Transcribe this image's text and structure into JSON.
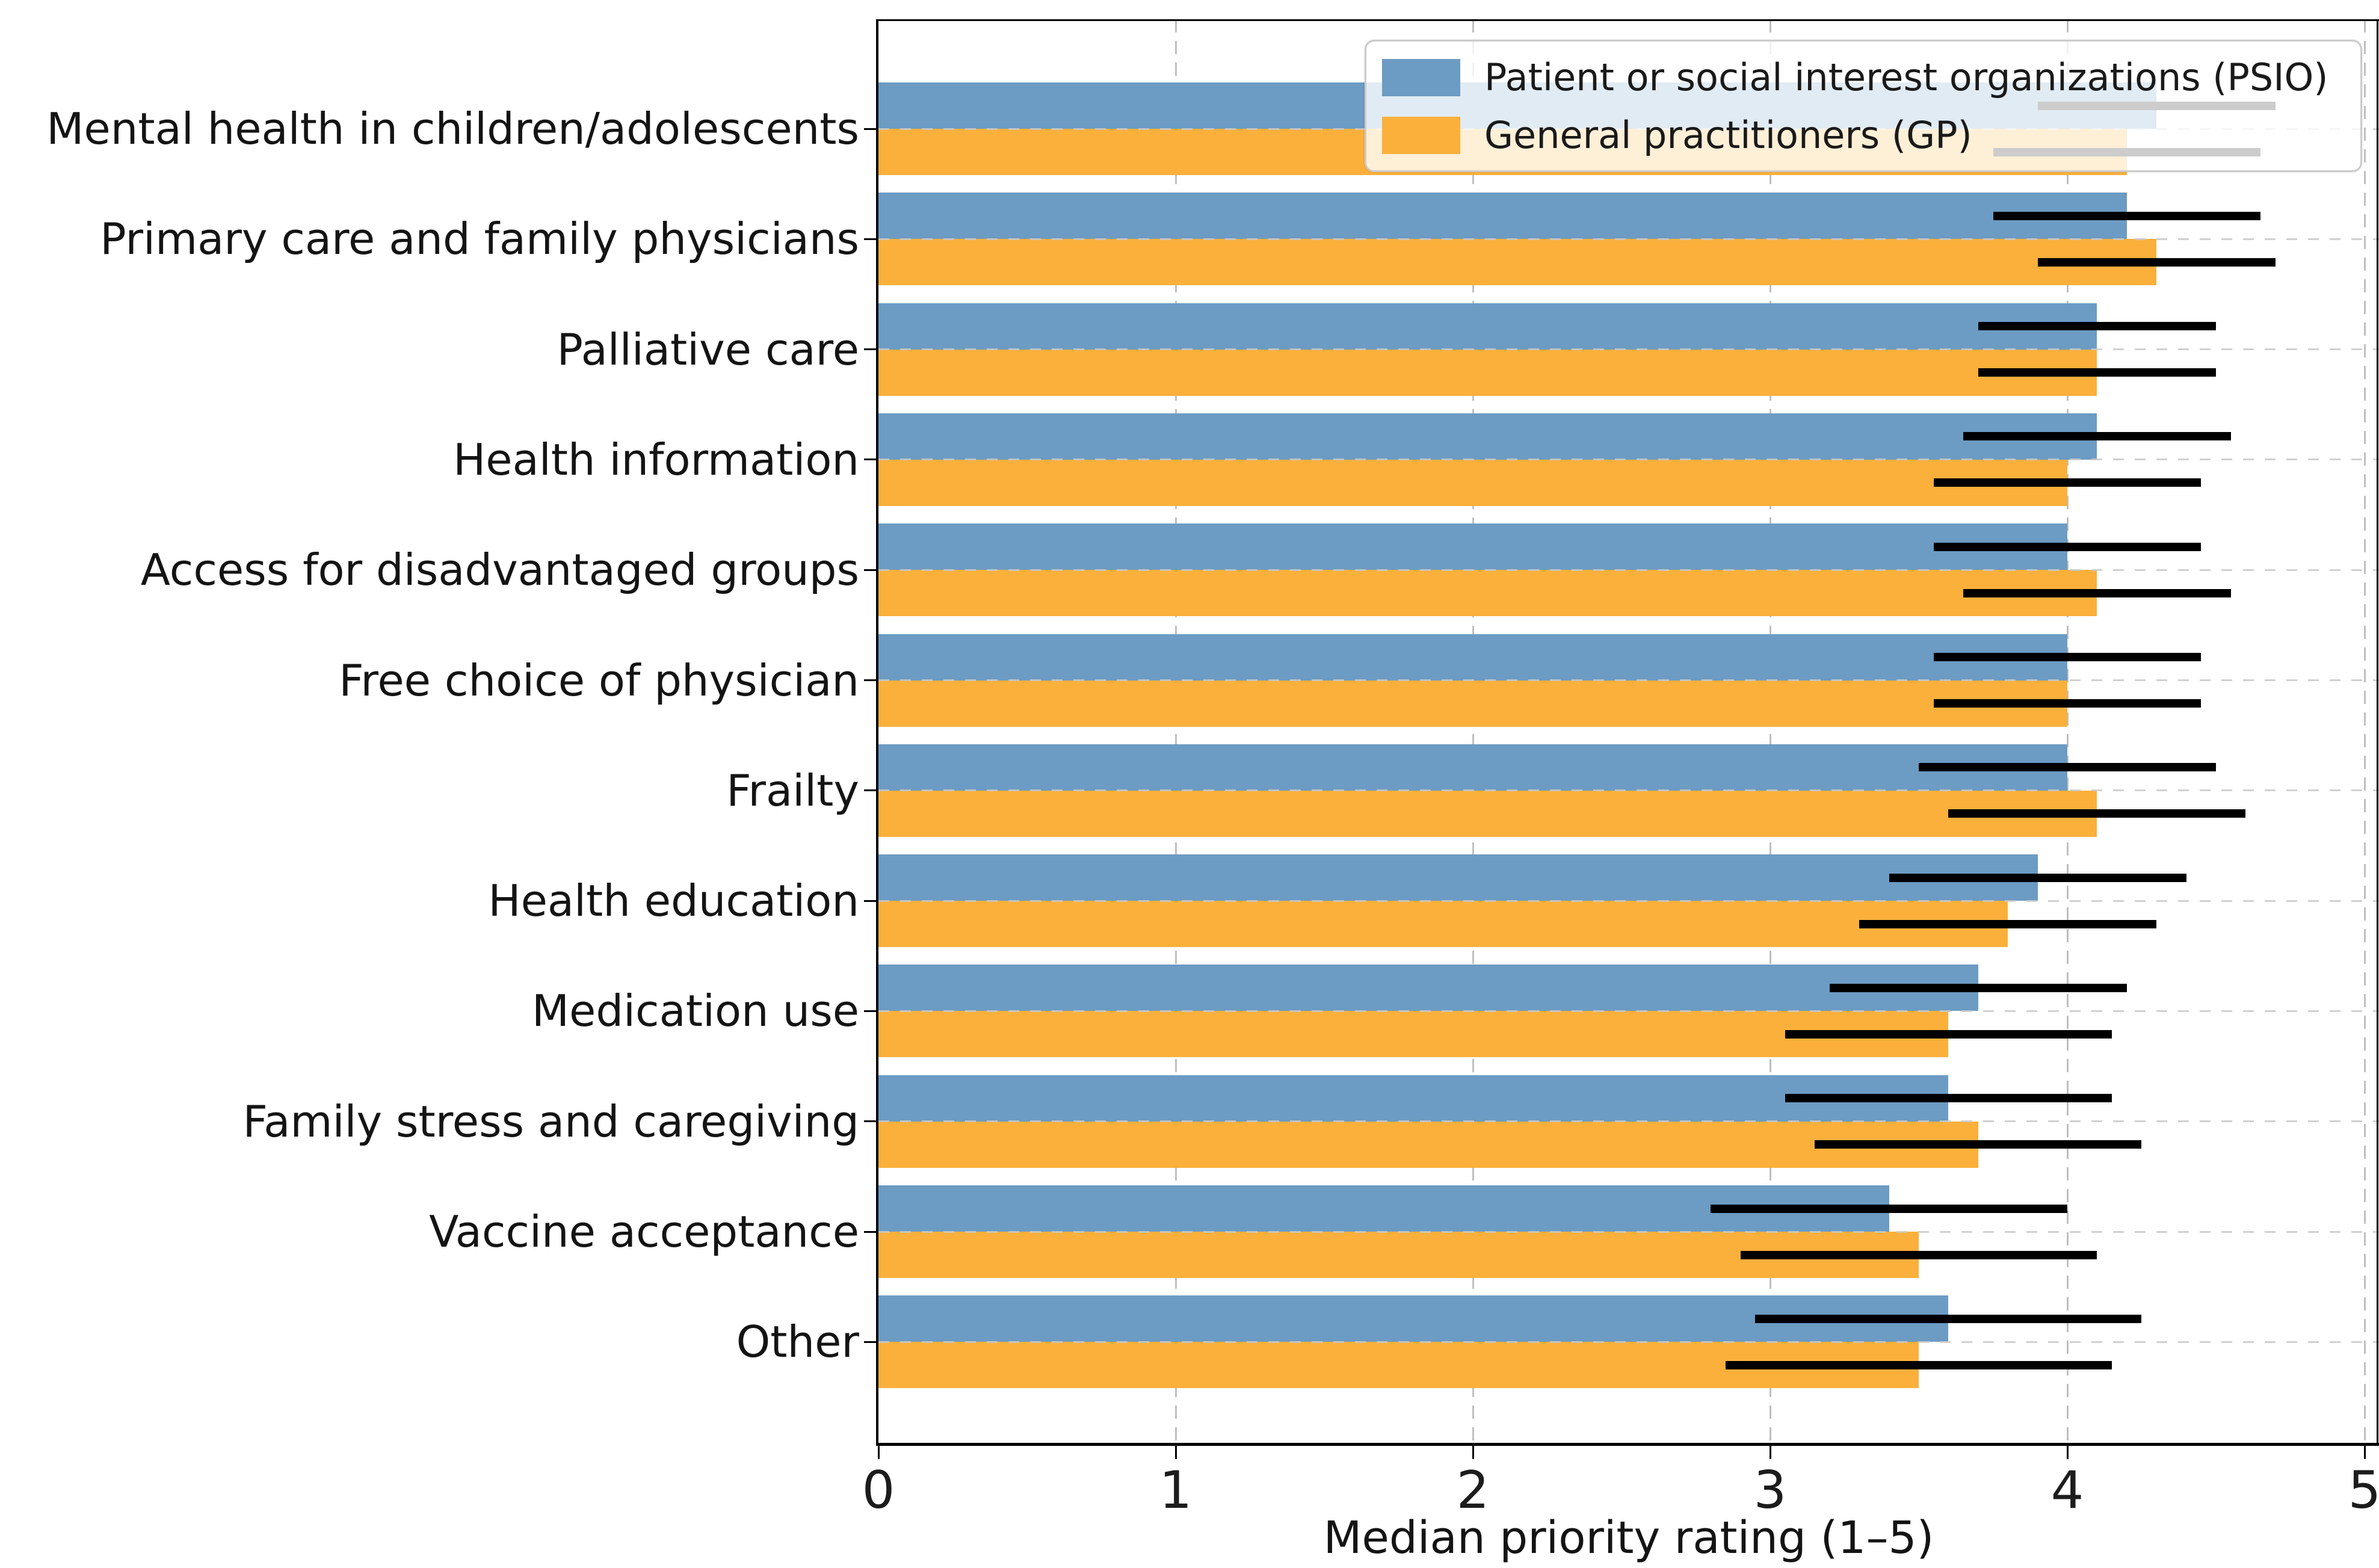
{
  "chart_data": {
    "type": "bar",
    "orientation": "horizontal",
    "grouped": true,
    "title": "",
    "xlabel": "Median priority rating (1–5)",
    "ylabel": "",
    "xlim": [
      0,
      5
    ],
    "xticks": [
      "0",
      "1",
      "2",
      "3",
      "4",
      "5"
    ],
    "grid": {
      "vertical": "dashed light grey at each integer 1-5",
      "horizontal": "dashed light grey at each category center"
    },
    "legend_position": "upper right",
    "error_bars": "black horizontal lines, no caps",
    "error_bar_color": "#000000",
    "categories": [
      "Mental health in children/adolescents",
      "Primary care and family physicians",
      "Palliative care",
      "Health information",
      "Access for disadvantaged groups",
      "Free choice of physician",
      "Frailty",
      "Health education",
      "Medication use",
      "Family stress and caregiving",
      "Vaccine acceptance",
      "Other"
    ],
    "series": [
      {
        "name": "Patient or social interest organizations (PSIO)",
        "color": "#6C9BC3",
        "values": [
          4.3,
          4.2,
          4.1,
          4.1,
          4.0,
          4.0,
          4.0,
          3.9,
          3.7,
          3.6,
          3.4,
          3.6
        ],
        "error_low": [
          3.9,
          3.75,
          3.7,
          3.65,
          3.55,
          3.55,
          3.5,
          3.4,
          3.2,
          3.05,
          2.8,
          2.95
        ],
        "error_high": [
          4.7,
          4.65,
          4.5,
          4.55,
          4.45,
          4.45,
          4.5,
          4.4,
          4.2,
          4.15,
          4.0,
          4.25
        ]
      },
      {
        "name": "General practitioners (GP)",
        "color": "#FAB03B",
        "values": [
          4.2,
          4.3,
          4.1,
          4.0,
          4.1,
          4.0,
          4.1,
          3.8,
          3.6,
          3.7,
          3.5,
          3.5
        ],
        "error_low": [
          3.75,
          3.9,
          3.7,
          3.55,
          3.65,
          3.55,
          3.6,
          3.3,
          3.05,
          3.15,
          2.9,
          2.85
        ],
        "error_high": [
          4.65,
          4.7,
          4.5,
          4.45,
          4.55,
          4.45,
          4.6,
          4.3,
          4.15,
          4.25,
          4.1,
          4.15
        ]
      }
    ]
  }
}
